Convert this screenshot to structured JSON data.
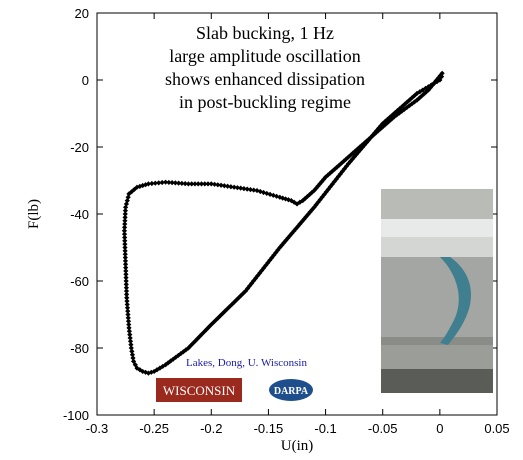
{
  "chart_data": {
    "type": "scatter",
    "title": "",
    "xlabel": "U(in)",
    "ylabel": "F(lb)",
    "xlim": [
      -0.3,
      0.05
    ],
    "ylim": [
      -100,
      20
    ],
    "xticks": [
      -0.3,
      -0.25,
      -0.2,
      -0.15,
      -0.1,
      -0.05,
      0,
      0.05
    ],
    "yticks": [
      -100,
      -80,
      -60,
      -40,
      -20,
      0,
      20
    ],
    "xtick_labels": [
      "-0.3",
      "-0.25",
      "-0.2",
      "-0.15",
      "-0.1",
      "-0.05",
      "0",
      "0.05"
    ],
    "ytick_labels": [
      "-100",
      "-80",
      "-60",
      "-40",
      "-20",
      "0",
      "20"
    ],
    "grid": false,
    "legend": "none",
    "marker": "diamond",
    "marker_color": "#000000",
    "series": [
      {
        "x": [
          0.002,
          -0.01,
          -0.02,
          -0.04,
          -0.06,
          -0.08,
          -0.1,
          -0.11,
          -0.12,
          -0.125,
          -0.13,
          -0.14,
          -0.16,
          -0.18,
          -0.2,
          -0.22,
          -0.24,
          -0.255,
          -0.265,
          -0.272,
          -0.275,
          -0.276,
          -0.275,
          -0.274,
          -0.272,
          -0.27,
          -0.268,
          -0.265,
          -0.26,
          -0.255,
          -0.25,
          -0.24,
          -0.22,
          -0.2,
          -0.17,
          -0.14,
          -0.11,
          -0.08,
          -0.05,
          -0.02,
          0.0,
          0.003
        ],
        "y": [
          2,
          -3,
          -6,
          -11,
          -17,
          -23,
          -29,
          -33,
          -36,
          -37,
          -36,
          -35,
          -33,
          -32,
          -31,
          -31,
          -30.5,
          -31,
          -32,
          -34,
          -38,
          -45,
          -55,
          -65,
          -74,
          -80,
          -84,
          -86,
          -87,
          -87.5,
          -87,
          -85,
          -80,
          -73,
          -63,
          -50,
          -38,
          -25,
          -13,
          -4,
          0,
          2
        ]
      }
    ]
  },
  "annotation": {
    "lines": [
      "Slab bucking, 1 Hz",
      "large amplitude oscillation",
      "shows enhanced dissipation",
      "in post-buckling regime"
    ]
  },
  "credit": "Lakes, Dong, U. Wisconsin",
  "logos": {
    "wisconsin": "WISCONSIN",
    "darpa": "DARPA"
  },
  "photo": {
    "description_icon": "slab-buckling-photo"
  },
  "colors": {
    "axes": "#000000",
    "credit_text": "#1a1aa8",
    "wisconsin_red": "#9a2a1e",
    "darpa_blue": "#1f4e8c"
  }
}
